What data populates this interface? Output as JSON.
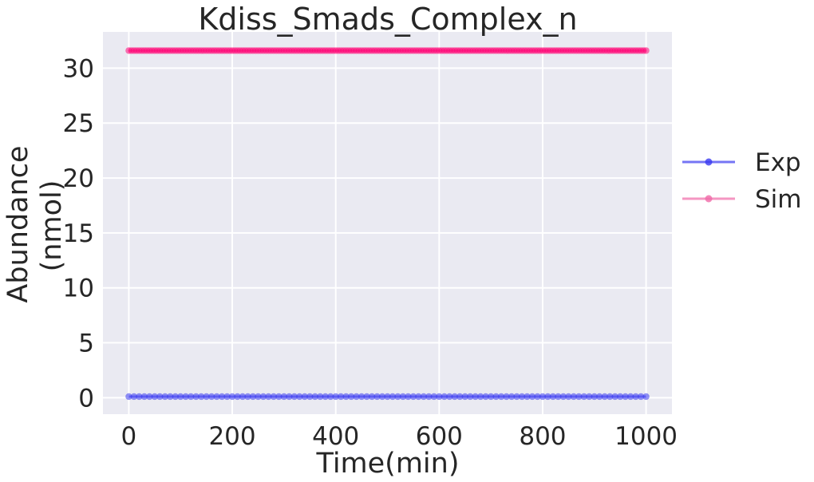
{
  "chart_data": {
    "type": "line",
    "title": "Kdiss_Smads_Complex_n",
    "xlabel": "Time(min)",
    "ylabel_lines": [
      "Abundance",
      "(nmol)"
    ],
    "xlim": [
      -50,
      1050
    ],
    "ylim": [
      -1.5,
      33.3
    ],
    "xticks": [
      0,
      200,
      400,
      600,
      800,
      1000
    ],
    "yticks": [
      0,
      5,
      10,
      15,
      20,
      25,
      30
    ],
    "grid": true,
    "legend_position": "right, outside",
    "series": [
      {
        "name": "Exp",
        "color": "#3a3af0",
        "marker": "circle",
        "x_range": [
          0,
          1000
        ],
        "x_step": 10,
        "value": 0.1
      },
      {
        "name": "Sim",
        "color": "#ff0a78",
        "legend_color": "#f06aa8",
        "marker": "circle",
        "x_range": [
          0,
          1000
        ],
        "x_step": 5,
        "value": 31.6
      }
    ]
  }
}
